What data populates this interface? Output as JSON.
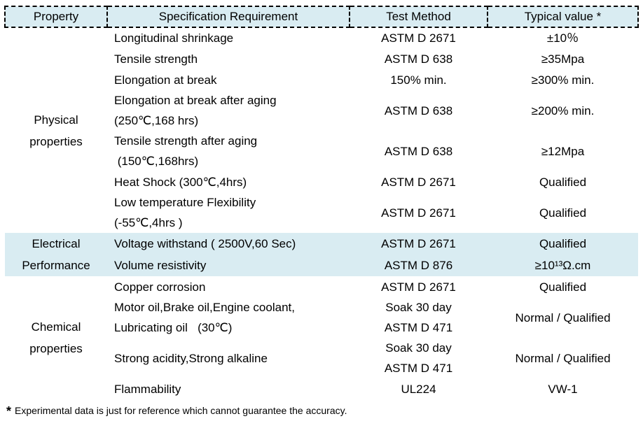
{
  "colors": {
    "header_bg": "#d9ecf2",
    "band_bg": "#d9ecf2",
    "border": "#000000",
    "text": "#000000"
  },
  "header": {
    "property": "Property",
    "specification": "Specification Requirement",
    "test_method": "Test Method",
    "typical_value": "Typical value *"
  },
  "groups": [
    {
      "name": "physical-properties",
      "lines": [
        "Physical",
        "properties"
      ]
    },
    {
      "name": "electrical-performance",
      "lines": [
        "Electrical",
        "Performance"
      ]
    },
    {
      "name": "chemical-properties",
      "lines": [
        "Chemical",
        "properties"
      ]
    }
  ],
  "rows": [
    {
      "spec": [
        "Longitudinal shrinkage"
      ],
      "test": [
        "ASTM D 2671"
      ],
      "typical": "±10％"
    },
    {
      "spec": [
        "Tensile strength"
      ],
      "test": [
        "ASTM D 638"
      ],
      "typical": "≥35Mpa"
    },
    {
      "spec": [
        "Elongation at break"
      ],
      "test": [
        "150% min."
      ],
      "typical": "≥300% min."
    },
    {
      "spec": [
        "Elongation at break after aging",
        "(250℃,168 hrs)"
      ],
      "test": [
        "ASTM D 638"
      ],
      "typical": "≥200% min."
    },
    {
      "spec": [
        "Tensile strength after aging",
        " (150℃,168hrs)"
      ],
      "test": [
        "ASTM D 638"
      ],
      "typical": "≥12Mpa"
    },
    {
      "spec": [
        "Heat Shock (300℃,4hrs)"
      ],
      "test": [
        "ASTM D 2671"
      ],
      "typical": "Qualified"
    },
    {
      "spec": [
        "Low temperature Flexibility",
        "(-55℃,4hrs )"
      ],
      "test": [
        "ASTM D 2671"
      ],
      "typical": "Qualified"
    },
    {
      "spec": [
        "Voltage withstand ( 2500V,60 Sec)"
      ],
      "test": [
        "ASTM D 2671"
      ],
      "typical": "Qualified"
    },
    {
      "spec": [
        "Volume resistivity"
      ],
      "test": [
        "ASTM D 876"
      ],
      "typical": "≥10¹³Ω.cm"
    },
    {
      "spec": [
        "Copper corrosion"
      ],
      "test": [
        "ASTM D 2671"
      ],
      "typical": "Qualified"
    },
    {
      "spec": [
        "Motor oil,Brake oil,Engine coolant,",
        "Lubricating oil   (30℃)"
      ],
      "test": [
        "Soak 30 day",
        "ASTM D 471"
      ],
      "typical": "Normal / Qualified"
    },
    {
      "spec": [
        "Strong acidity,Strong alkaline"
      ],
      "test": [
        "Soak 30 day",
        "ASTM D 471"
      ],
      "typical": "Normal / Qualified"
    },
    {
      "spec": [
        "Flammability"
      ],
      "test": [
        "UL224"
      ],
      "typical": "VW-1"
    }
  ],
  "footnote": {
    "marker": "*",
    "text": "Experimental data is just for reference which cannot guarantee the accuracy."
  }
}
